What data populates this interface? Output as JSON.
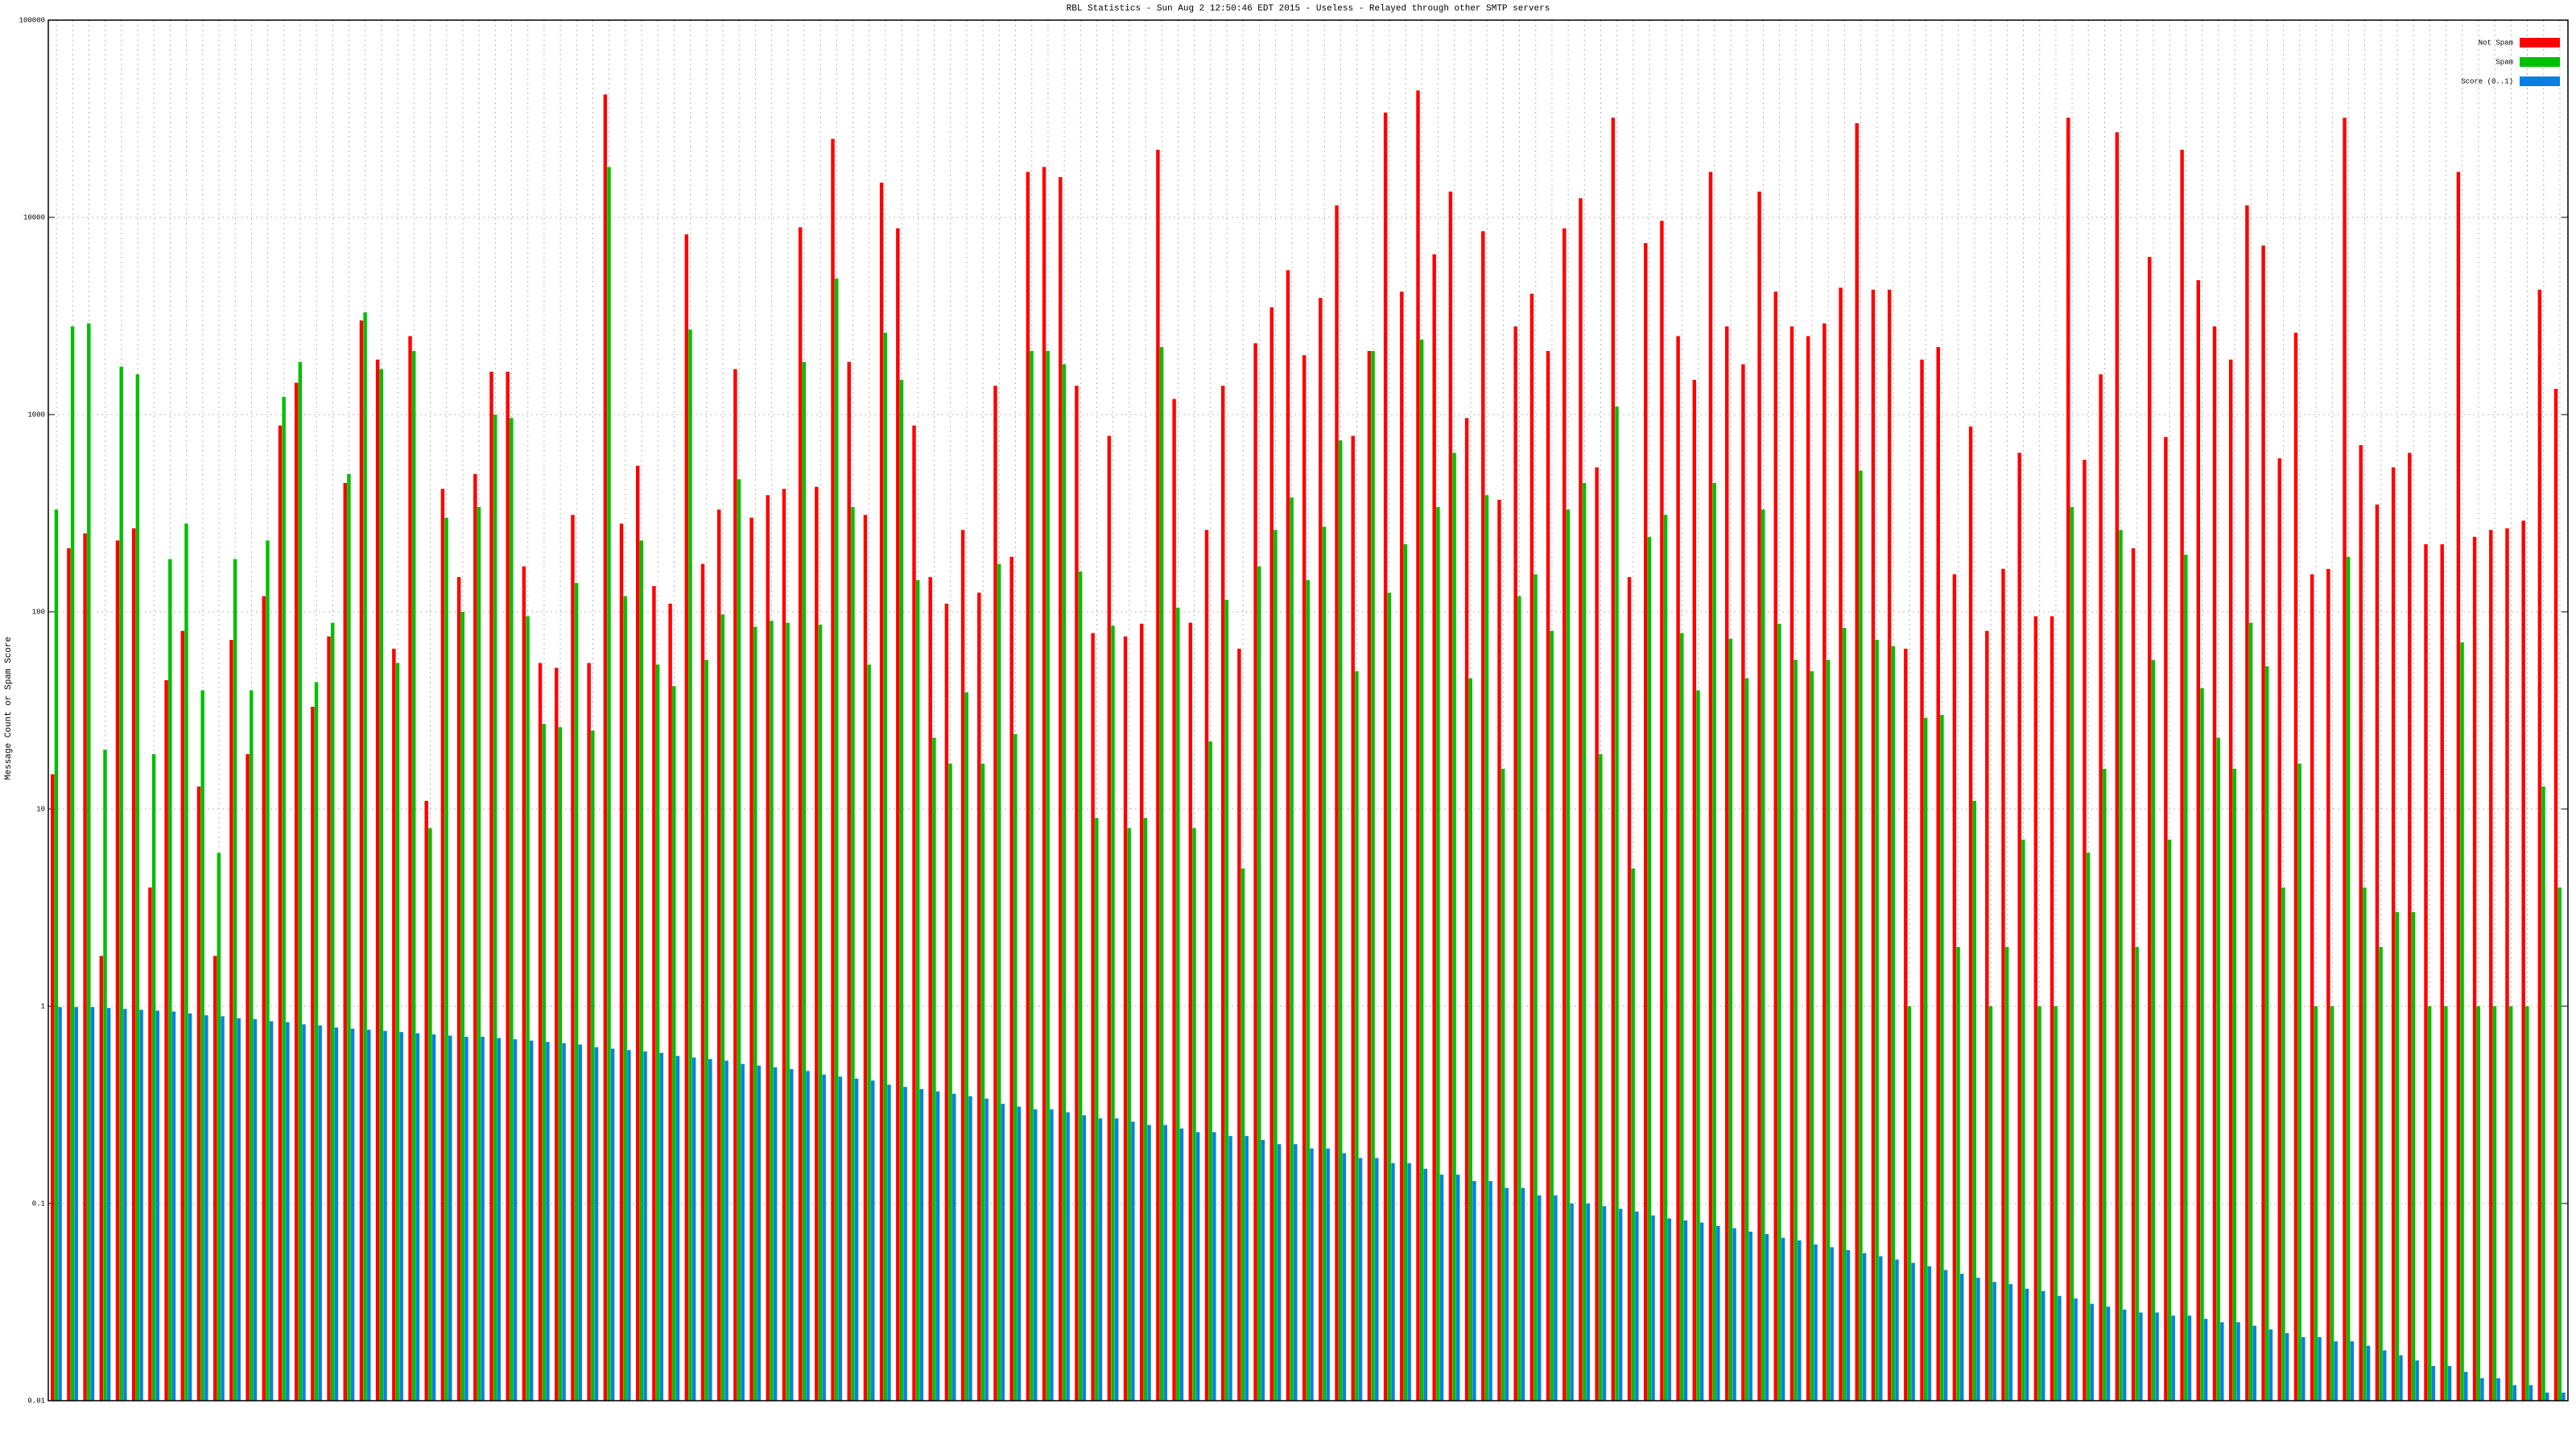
{
  "chart_data": {
    "type": "bar",
    "title": "RBL Statistics - Sun Aug  2 12:50:46 EDT 2015 - Useless - Relayed through other SMTP servers",
    "y_label": "Message Count or Spam Score",
    "log_scale": true,
    "grid": true,
    "legend": "top-right",
    "ylim": [
      0.01,
      100000
    ],
    "yticks": [
      0.01,
      0.1,
      1,
      10,
      100,
      1000,
      10000,
      100000
    ],
    "categories": [
      null,
      null,
      null,
      null,
      null,
      null,
      null,
      null,
      null,
      null,
      null,
      null,
      null,
      null,
      null,
      null,
      null,
      null,
      null,
      null,
      null,
      null,
      null,
      null,
      null,
      null,
      null,
      null,
      null,
      null,
      null,
      null,
      null,
      null,
      null,
      null,
      null,
      null,
      null,
      null,
      null,
      null,
      null,
      null,
      null,
      null,
      null,
      null,
      null,
      null,
      null,
      null,
      null,
      null,
      null,
      null,
      null,
      null,
      null,
      null,
      null,
      null,
      null,
      null,
      null,
      null,
      null,
      null,
      null,
      null,
      null,
      null,
      null,
      null,
      null,
      null,
      null,
      null,
      null,
      null,
      null,
      null,
      null,
      null,
      null,
      null,
      null,
      null,
      null,
      null,
      null,
      null,
      null,
      null,
      null,
      null,
      null,
      null,
      null,
      null,
      null,
      null,
      null,
      null,
      null,
      null,
      null,
      null,
      null,
      null,
      null,
      null,
      null,
      null,
      null,
      null,
      null,
      null,
      null,
      null,
      null,
      null,
      null,
      null,
      null,
      null,
      null,
      null,
      null,
      null,
      null,
      null,
      null,
      null,
      null,
      null,
      null,
      null,
      null,
      null,
      null,
      null,
      null,
      null,
      null,
      null,
      null,
      null,
      null,
      null,
      null,
      null,
      null,
      null,
      null
    ],
    "series": [
      {
        "name": "Not Spam",
        "color": "#ff0000",
        "values": [
          15,
          210,
          250,
          1.8,
          230,
          265,
          4,
          45,
          80,
          13,
          1.8,
          72,
          19,
          120,
          880,
          1450,
          33,
          75,
          450,
          3000,
          1900,
          65,
          2500,
          11,
          420,
          150,
          500,
          1650,
          1650,
          170,
          55,
          52,
          310,
          55,
          42000,
          280,
          550,
          135,
          110,
          8200,
          175,
          330,
          1700,
          300,
          390,
          420,
          8900,
          430,
          25000,
          1850,
          310,
          15000,
          8800,
          880,
          150,
          110,
          260,
          125,
          1400,
          190,
          17000,
          18000,
          16000,
          1400,
          78,
          780,
          75,
          87,
          22000,
          1200,
          88,
          260,
          1400,
          65,
          2300,
          3500,
          5400,
          2000,
          3900,
          11500,
          780,
          2100,
          34000,
          4200,
          44000,
          6500,
          13500,
          960,
          8500,
          370,
          2800,
          4100,
          2100,
          8800,
          12500,
          540,
          32000,
          150,
          7400,
          9600,
          2500,
          1500,
          17000,
          2800,
          1800,
          13500,
          4200,
          2800,
          2500,
          2900,
          4400,
          30000,
          4300,
          4300,
          65,
          1900,
          2200,
          155,
          870,
          80,
          165,
          640,
          95,
          95,
          32000,
          590,
          1600,
          27000,
          210,
          6300,
          770,
          22000,
          4800,
          2800,
          1900,
          11500,
          7200,
          600,
          2600,
          155,
          165,
          32000,
          700,
          350,
          540,
          640,
          220,
          220,
          17000,
          240,
          260,
          265,
          290,
          4300,
          1350
        ]
      },
      {
        "name": "Spam",
        "color": "#00c000",
        "values": [
          330,
          2800,
          2900,
          20,
          1750,
          1600,
          19,
          185,
          280,
          40,
          6,
          185,
          40,
          230,
          1230,
          1850,
          44,
          88,
          500,
          3300,
          1700,
          55,
          2100,
          8,
          300,
          100,
          340,
          1000,
          960,
          95,
          27,
          26,
          140,
          25,
          18000,
          120,
          230,
          54,
          42,
          2700,
          57,
          97,
          470,
          84,
          90,
          88,
          1850,
          86,
          4900,
          340,
          54,
          2600,
          1500,
          145,
          23,
          17,
          39,
          17,
          175,
          24,
          2100,
          2100,
          1800,
          160,
          9,
          85,
          8,
          9,
          2200,
          105,
          8,
          22,
          115,
          5,
          170,
          260,
          380,
          145,
          270,
          740,
          50,
          2100,
          125,
          220,
          2400,
          340,
          640,
          46,
          390,
          16,
          120,
          155,
          80,
          330,
          450,
          19,
          1100,
          5,
          240,
          310,
          78,
          40,
          450,
          73,
          46,
          330,
          87,
          57,
          50,
          57,
          83,
          520,
          72,
          67,
          1,
          29,
          30,
          2,
          11,
          1,
          2,
          7,
          1,
          1,
          340,
          6,
          16,
          260,
          2,
          57,
          7,
          195,
          41,
          23,
          16,
          88,
          53,
          4,
          17,
          1,
          1,
          190,
          4,
          2,
          3,
          3,
          1,
          1,
          70,
          1,
          1,
          1,
          1,
          13,
          4
        ]
      },
      {
        "name": "Score (0..1)",
        "color": "#0a7fe6",
        "values": [
          0.99,
          0.99,
          0.99,
          0.98,
          0.97,
          0.96,
          0.95,
          0.94,
          0.92,
          0.9,
          0.89,
          0.87,
          0.86,
          0.84,
          0.83,
          0.81,
          0.8,
          0.78,
          0.77,
          0.76,
          0.75,
          0.74,
          0.73,
          0.72,
          0.71,
          0.7,
          0.7,
          0.69,
          0.68,
          0.67,
          0.66,
          0.65,
          0.64,
          0.62,
          0.61,
          0.6,
          0.59,
          0.58,
          0.56,
          0.55,
          0.54,
          0.53,
          0.51,
          0.5,
          0.49,
          0.48,
          0.47,
          0.45,
          0.44,
          0.43,
          0.42,
          0.4,
          0.39,
          0.38,
          0.37,
          0.36,
          0.35,
          0.34,
          0.32,
          0.31,
          0.3,
          0.3,
          0.29,
          0.28,
          0.27,
          0.27,
          0.26,
          0.25,
          0.25,
          0.24,
          0.23,
          0.23,
          0.22,
          0.22,
          0.21,
          0.2,
          0.2,
          0.19,
          0.19,
          0.18,
          0.17,
          0.17,
          0.16,
          0.16,
          0.15,
          0.14,
          0.14,
          0.13,
          0.13,
          0.12,
          0.12,
          0.11,
          0.11,
          0.1,
          0.1,
          0.097,
          0.094,
          0.091,
          0.087,
          0.084,
          0.082,
          0.08,
          0.077,
          0.075,
          0.072,
          0.07,
          0.067,
          0.065,
          0.062,
          0.06,
          0.058,
          0.056,
          0.054,
          0.052,
          0.05,
          0.048,
          0.046,
          0.044,
          0.042,
          0.04,
          0.039,
          0.037,
          0.036,
          0.034,
          0.033,
          0.031,
          0.03,
          0.029,
          0.028,
          0.028,
          0.027,
          0.027,
          0.026,
          0.025,
          0.025,
          0.024,
          0.023,
          0.022,
          0.021,
          0.021,
          0.02,
          0.02,
          0.019,
          0.018,
          0.017,
          0.016,
          0.015,
          0.015,
          0.014,
          0.013,
          0.013,
          0.012,
          0.012,
          0.011,
          0.011
        ]
      }
    ]
  }
}
